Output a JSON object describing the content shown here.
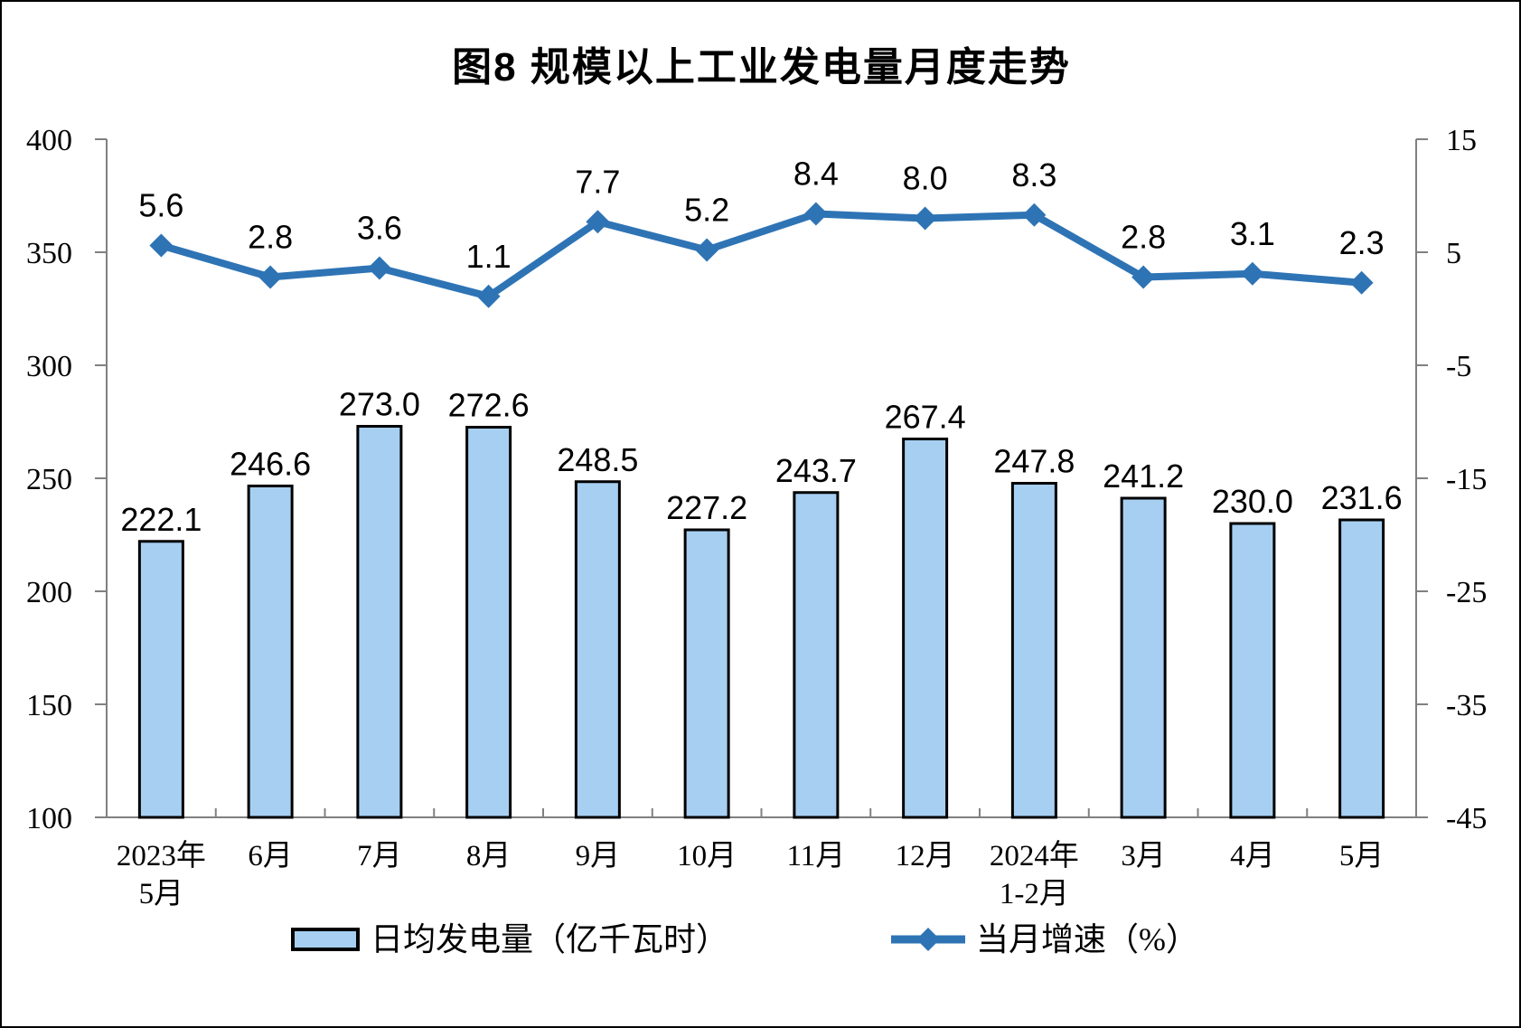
{
  "chart_data": {
    "type": "combo-bar-line",
    "title": "图8 规模以上工业发电量月度走势",
    "grid": false,
    "legend_position": "bottom",
    "categories": [
      {
        "line1": "2023年",
        "line2": "5月"
      },
      {
        "line1": "6月"
      },
      {
        "line1": "7月"
      },
      {
        "line1": "8月"
      },
      {
        "line1": "9月"
      },
      {
        "line1": "10月"
      },
      {
        "line1": "11月"
      },
      {
        "line1": "12月"
      },
      {
        "line1": "2024年",
        "line2": "1-2月"
      },
      {
        "line1": "3月"
      },
      {
        "line1": "4月"
      },
      {
        "line1": "5月"
      }
    ],
    "series": [
      {
        "name": "日均发电量（亿千瓦时）",
        "type": "bar",
        "axis": "left",
        "values": [
          222.1,
          246.6,
          273.0,
          272.6,
          248.5,
          227.2,
          243.7,
          267.4,
          247.8,
          241.2,
          230.0,
          231.6
        ]
      },
      {
        "name": "当月增速（%）",
        "type": "line",
        "axis": "right",
        "values": [
          5.6,
          2.8,
          3.6,
          1.1,
          7.7,
          5.2,
          8.4,
          8.0,
          8.3,
          2.8,
          3.1,
          2.3
        ]
      }
    ],
    "left_axis": {
      "min": 100,
      "max": 400,
      "step": 50,
      "ticks": [
        400,
        350,
        300,
        250,
        200,
        150,
        100
      ]
    },
    "right_axis": {
      "min": -45,
      "max": 15,
      "step": 10,
      "ticks": [
        15,
        5,
        -5,
        -15,
        -25,
        -35,
        -45
      ]
    },
    "colors": {
      "bar_fill": "#A6CFF2",
      "bar_border": "#000000",
      "line": "#2E74B5",
      "axis": "#808080",
      "text": "#000000"
    }
  }
}
